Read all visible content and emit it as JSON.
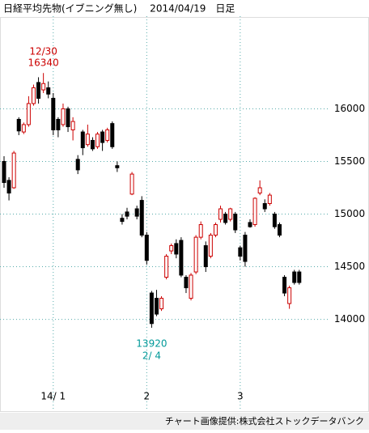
{
  "chart_data": {
    "type": "candlestick",
    "title": "日経平均先物(イブニング無し)　 2014/04/19　日足",
    "footer": "チャート画像提供:株式会社ストックデータバンク",
    "categories": [
      null,
      null,
      null,
      null,
      null,
      null,
      null,
      null,
      null,
      null,
      "14/ 1",
      null,
      null,
      null,
      null,
      null,
      null,
      null,
      null,
      null,
      null,
      null,
      null,
      null,
      null,
      null,
      null,
      null,
      null,
      "2",
      null,
      null,
      null,
      null,
      null,
      null,
      null,
      null,
      null,
      null,
      null,
      null,
      null,
      null,
      null,
      null,
      null,
      null,
      "3",
      null,
      null,
      null,
      null,
      null,
      null,
      null,
      null,
      null,
      null,
      null,
      null
    ],
    "open": [
      15500,
      15320,
      15250,
      15900,
      15780,
      15850,
      16050,
      16250,
      16180,
      16200,
      16100,
      15900,
      15850,
      16000,
      15800,
      15520,
      15780,
      15660,
      15700,
      15640,
      15780,
      15700,
      15860,
      15460,
      14960,
      15020,
      15190,
      15050,
      15130,
      14800,
      14250,
      14200,
      14100,
      14400,
      14650,
      14720,
      14750,
      14400,
      14200,
      14450,
      14780,
      14700,
      14600,
      14800,
      14950,
      15000,
      14950,
      15000,
      14680,
      14800,
      14920,
      14900,
      15200,
      15100,
      15100,
      15000,
      14900,
      14400,
      14150,
      14450,
      14450
    ],
    "high": [
      15550,
      15350,
      15600,
      15920,
      15870,
      16120,
      16230,
      16300,
      16340,
      16260,
      16150,
      15920,
      16050,
      16020,
      15920,
      15560,
      15800,
      15850,
      15730,
      15780,
      15800,
      15820,
      15880,
      15500,
      15000,
      15060,
      15400,
      15080,
      15170,
      14830,
      14270,
      14280,
      14220,
      14620,
      14720,
      14760,
      14780,
      14420,
      14440,
      14800,
      14930,
      14740,
      14820,
      14920,
      15080,
      15020,
      15060,
      15020,
      14700,
      14830,
      14950,
      15160,
      15320,
      15140,
      15200,
      15020,
      14920,
      14420,
      14320,
      14470,
      14470
    ],
    "low": [
      15250,
      15130,
      15240,
      15750,
      15760,
      15830,
      16030,
      16050,
      16150,
      16100,
      15750,
      15730,
      15830,
      15780,
      15700,
      15380,
      15560,
      15640,
      15600,
      15620,
      15600,
      15680,
      15620,
      15400,
      14900,
      14950,
      15180,
      14950,
      14780,
      14520,
      13920,
      14030,
      14080,
      14380,
      14620,
      14580,
      14400,
      14250,
      14180,
      14430,
      14760,
      14450,
      14580,
      14780,
      14920,
      14900,
      14930,
      14820,
      14560,
      14500,
      14870,
      14880,
      15180,
      15020,
      15080,
      14860,
      14780,
      14220,
      14100,
      14330,
      14330
    ],
    "close": [
      15300,
      15200,
      15580,
      15790,
      15850,
      16050,
      16200,
      16100,
      16240,
      16140,
      15800,
      15800,
      16000,
      15830,
      15880,
      15420,
      15630,
      15760,
      15620,
      15760,
      15680,
      15800,
      15640,
      15440,
      14930,
      14980,
      15380,
      14980,
      14800,
      14560,
      13960,
      14050,
      14200,
      14600,
      14700,
      14620,
      14420,
      14300,
      14420,
      14780,
      14900,
      14500,
      14800,
      14900,
      15050,
      14920,
      15050,
      14850,
      14600,
      14550,
      14880,
      15150,
      15250,
      15050,
      15180,
      14880,
      14800,
      14250,
      14300,
      14350,
      14350
    ],
    "annotations": [
      {
        "date": "12/30",
        "price": 16340,
        "color": "#cc0000"
      },
      {
        "date": "2/ 4",
        "price": 13920,
        "color": "#009999"
      }
    ],
    "up_color": "#cc0000",
    "down_color": "#000000",
    "ylim": [
      13420,
      16880
    ],
    "yticks": [
      14000,
      14500,
      15000,
      15500,
      16000
    ],
    "grid": true
  }
}
